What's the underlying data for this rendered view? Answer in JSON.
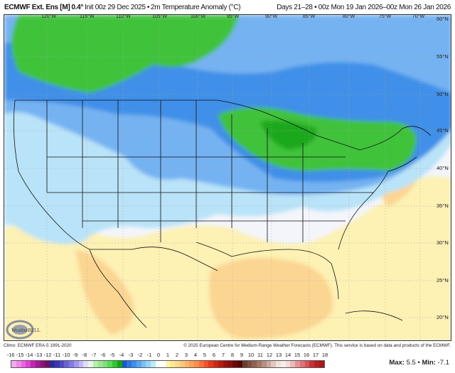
{
  "header": {
    "model": "ECMWF Ext. Ens [M]",
    "resolution": "0.4°",
    "init": "Init 00z 29 Dec 2025",
    "separator": "•",
    "field": "2m Temperature Anomaly (°C)",
    "valid": "Days 21–28 • 00z Mon 19 Jan 2026–00z Mon 26 Jan 2026"
  },
  "map": {
    "lon_labels": [
      "120°W",
      "115°W",
      "110°W",
      "105°W",
      "100°W",
      "95°W",
      "90°W",
      "85°W",
      "80°W",
      "75°W",
      "70°W"
    ],
    "lat_labels": [
      "60°N",
      "55°N",
      "50°N",
      "45°N",
      "40°N",
      "35°N",
      "30°N",
      "25°N",
      "20°N"
    ],
    "logo_text": "WeatherBELL",
    "colors": {
      "white": "#f3f5fb",
      "pale_yellow": "#fdf1b4",
      "orange": "#fbd592",
      "light_blue": "#b9e3f8",
      "mid_blue": "#74b2f2",
      "blue": "#3f8fe8",
      "green": "#3fc23a",
      "dark_green": "#1ea81e"
    }
  },
  "footer": {
    "climo": "Climo: ECMWF ERA-5 1991-2020",
    "copyright": "© 2025 European Centre for Medium-Range Weather Forecasts (ECMWF). This service is based on data and products of the ECMWF."
  },
  "colorbar": {
    "ticks": [
      "-16",
      "-15",
      "-14",
      "-13",
      "-12",
      "-11",
      "-10",
      "-9",
      "-8",
      "-7",
      "-6",
      "-5",
      "-4",
      "-3",
      "-2",
      "-1",
      "0",
      "1",
      "2",
      "3",
      "4",
      "5",
      "6",
      "7",
      "8",
      "9",
      "10",
      "11",
      "12",
      "13",
      "14",
      "15",
      "16",
      "17",
      "18"
    ],
    "colors": [
      "#f5a8f0",
      "#f088e8",
      "#f060e8",
      "#e040d8",
      "#c820b8",
      "#a81898",
      "#901080",
      "#701060",
      "#2a2aa0",
      "#3a34b8",
      "#5048c8",
      "#6a60d8",
      "#8478e8",
      "#a098f0",
      "#c0b8f8",
      "#e0dcf8",
      "#e8f4e8",
      "#b0f0a8",
      "#98e890",
      "#80e078",
      "#50e050",
      "#30c830",
      "#10a810",
      "#1858d0",
      "#2878e0",
      "#3c90f0",
      "#58a8f8",
      "#78c0f8",
      "#98d4f8",
      "#b8ecf8",
      "#ffffff",
      "#ffffff",
      "#fff4a8",
      "#ffe890",
      "#ffd888",
      "#ffc878",
      "#ffb468",
      "#ffa058",
      "#ff8c48",
      "#ff7038",
      "#f85028",
      "#e83818",
      "#d02810",
      "#b81c10",
      "#a01008",
      "#881008",
      "#700808",
      "#580404",
      "#684030",
      "#7c5040",
      "#906050",
      "#a47868",
      "#b89080",
      "#cca8a0",
      "#e0c8c0",
      "#f0e0d8",
      "#f8eee8",
      "#f8d8d8",
      "#f0b8b8",
      "#e89098",
      "#e07078",
      "#d85058",
      "#c83038",
      "#b82028",
      "#a81818"
    ]
  },
  "stats": {
    "max_label": "Max:",
    "max": "5.5",
    "sep": "•",
    "min_label": "Min:",
    "min": "-7.1"
  }
}
